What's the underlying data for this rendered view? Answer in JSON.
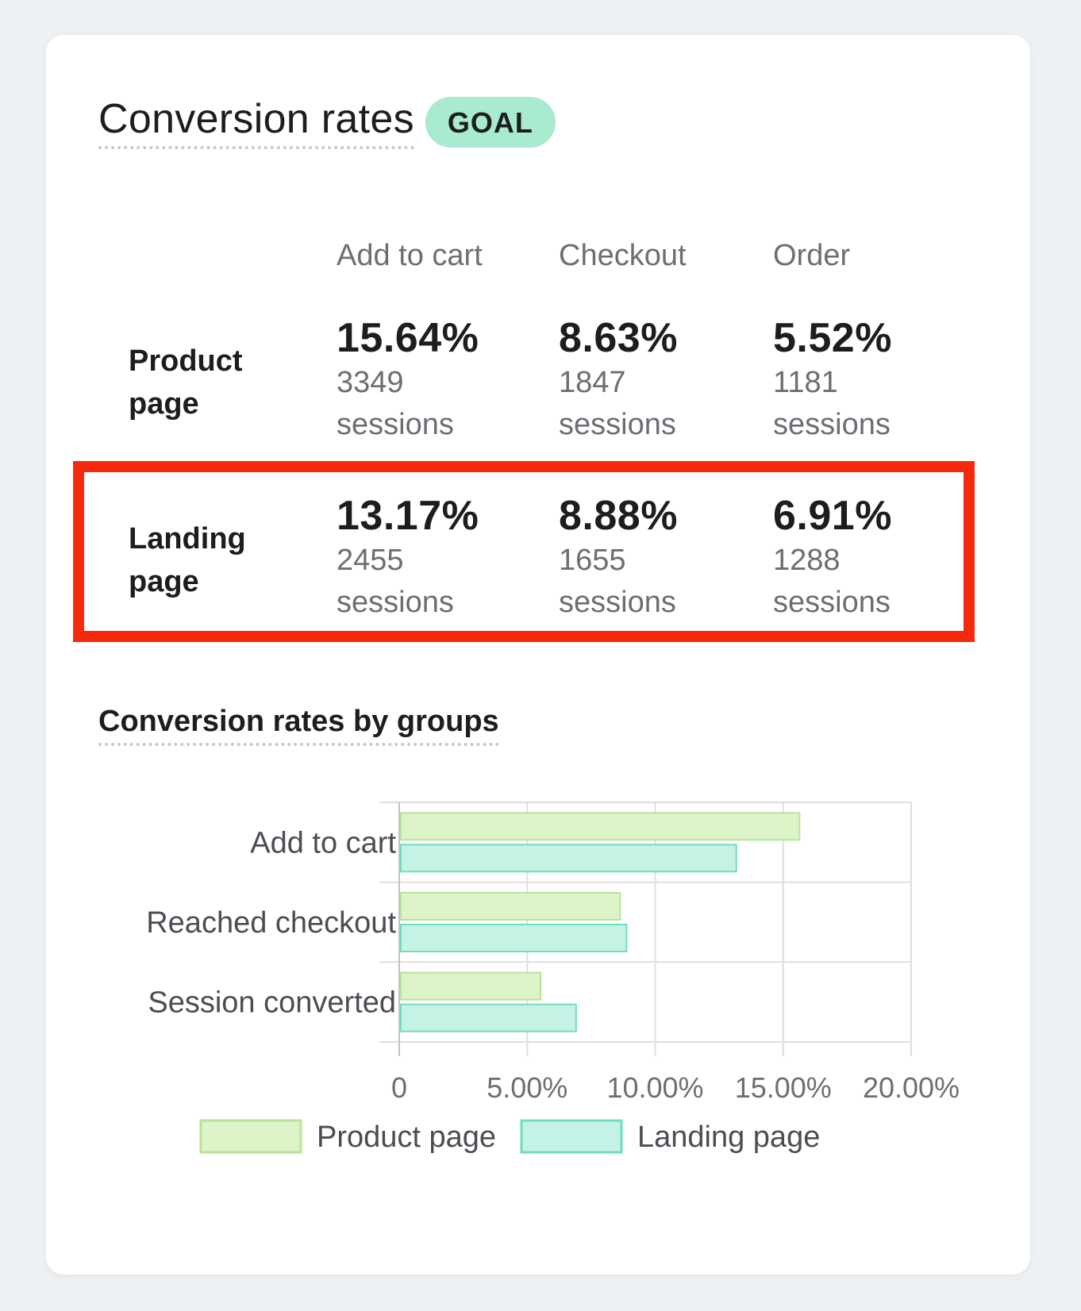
{
  "header": {
    "title": "Conversion rates",
    "badge": "GOAL"
  },
  "table": {
    "columns": [
      "Add to cart",
      "Checkout",
      "Order"
    ],
    "rows": [
      {
        "label_line1": "Product",
        "label_line2": "page",
        "cells": [
          {
            "rate": "15.64%",
            "sessions": "3349 sessions"
          },
          {
            "rate": "8.63%",
            "sessions": "1847 sessions"
          },
          {
            "rate": "5.52%",
            "sessions": "1181 sessions"
          }
        ]
      },
      {
        "label_line1": "Landing",
        "label_line2": "page",
        "cells": [
          {
            "rate": "13.17%",
            "sessions": "2455 sessions"
          },
          {
            "rate": "8.88%",
            "sessions": "1655 sessions"
          },
          {
            "rate": "6.91%",
            "sessions": "1288 sessions"
          }
        ]
      }
    ]
  },
  "colors": {
    "highlight": "#f52a0d",
    "badge": "#a8ebcf",
    "product_fill": "#ddf3c8",
    "product_stroke": "#b7e39a",
    "landing_fill": "#c4f2e5",
    "landing_stroke": "#72dcbf"
  },
  "chart_data": {
    "type": "bar",
    "orientation": "horizontal",
    "title": "Conversion rates by groups",
    "categories": [
      "Add to cart",
      "Reached checkout",
      "Session converted"
    ],
    "series": [
      {
        "name": "Product page",
        "values": [
          15.64,
          8.63,
          5.52
        ]
      },
      {
        "name": "Landing page",
        "values": [
          13.17,
          8.88,
          6.91
        ]
      }
    ],
    "xlim": [
      0,
      20
    ],
    "xticks": [
      "0",
      "5.00%",
      "10.00%",
      "15.00%",
      "20.00%"
    ],
    "grid": true,
    "legend": "bottom"
  }
}
